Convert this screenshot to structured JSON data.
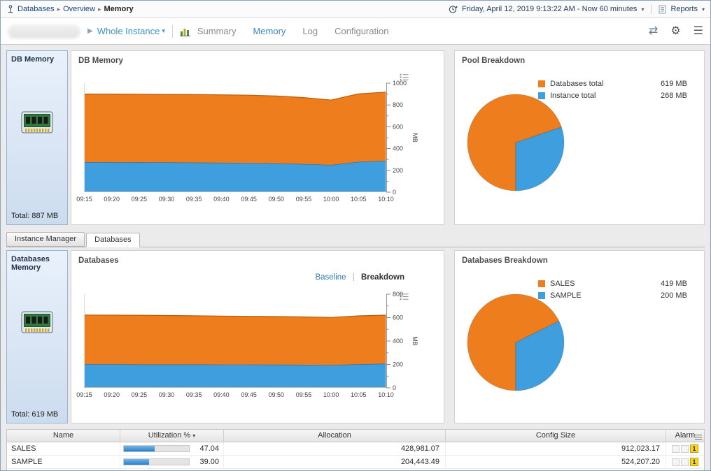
{
  "colors": {
    "orange": "#ee7d1d",
    "blue": "#3e9ede",
    "link_blue": "#2e7fb5",
    "alarm_yellow": "#fdd226"
  },
  "breadcrumb": {
    "items": [
      "Databases",
      "Overview",
      "Memory"
    ]
  },
  "header": {
    "time_range": "Friday, April 12, 2019 9:13:22 AM - Now 60 minutes",
    "reports_label": "Reports"
  },
  "toolbar": {
    "instance_selector": "Whole Instance",
    "nav": [
      "Summary",
      "Memory",
      "Log",
      "Configuration"
    ],
    "active_tab": "Memory"
  },
  "panels": {
    "db_memory_card": {
      "title": "DB Memory",
      "total": "Total: 887 MB"
    },
    "db_memory_chart": {
      "title": "DB Memory"
    },
    "pool_breakdown": {
      "title": "Pool Breakdown",
      "legend": [
        {
          "label": "Databases total",
          "value": "619 MB"
        },
        {
          "label": "Instance total",
          "value": "268 MB"
        }
      ]
    },
    "databases_card": {
      "title": "Databases Memory",
      "total": "Total: 619 MB"
    },
    "databases_chart": {
      "title": "Databases",
      "toggle": {
        "baseline": "Baseline",
        "breakdown": "Breakdown"
      }
    },
    "databases_breakdown": {
      "title": "Databases Breakdown",
      "legend": [
        {
          "label": "SALES",
          "value": "419 MB"
        },
        {
          "label": "SAMPLE",
          "value": "200 MB"
        }
      ]
    }
  },
  "subtabs": {
    "items": [
      "Instance Manager",
      "Databases"
    ],
    "active": "Databases"
  },
  "table": {
    "columns": [
      "Name",
      "Utilization %",
      "Allocation",
      "Config Size",
      "Alarm"
    ],
    "rows": [
      {
        "name": "SALES",
        "utilization": "47.04",
        "utilization_pct": 47.04,
        "allocation": "428,981.07",
        "config_size": "912,023.17",
        "alarm_warning": "1"
      },
      {
        "name": "SAMPLE",
        "utilization": "39.00",
        "utilization_pct": 39.0,
        "allocation": "204,443.49",
        "config_size": "524,207.20",
        "alarm_warning": "1"
      }
    ]
  },
  "chart_data": [
    {
      "type": "area",
      "title": "DB Memory",
      "ylabel": "MB",
      "ylim": [
        0,
        1000
      ],
      "ytick": 200,
      "categories": [
        "09:15",
        "09:20",
        "09:25",
        "09:30",
        "09:35",
        "09:40",
        "09:45",
        "09:50",
        "09:55",
        "10:00",
        "10:05",
        "10:10"
      ],
      "series": [
        {
          "name": "Instance total",
          "color": "#3e9ede",
          "edge": "#1a6fb0",
          "values": [
            275,
            274,
            274,
            273,
            272,
            270,
            268,
            264,
            258,
            250,
            278,
            288
          ]
        },
        {
          "name": "Databases total",
          "color": "#ee7d1d",
          "edge": "#b85e08",
          "values": [
            625,
            626,
            624,
            624,
            624,
            623,
            622,
            618,
            610,
            595,
            624,
            630
          ]
        }
      ]
    },
    {
      "type": "pie",
      "title": "Pool Breakdown",
      "slices": [
        {
          "label": "Databases total",
          "value": 619,
          "color": "#ee7d1d"
        },
        {
          "label": "Instance total",
          "value": 268,
          "color": "#3e9ede"
        }
      ]
    },
    {
      "type": "area",
      "title": "Databases",
      "ylabel": "MB",
      "ylim": [
        0,
        800
      ],
      "ytick": 200,
      "categories": [
        "09:15",
        "09:20",
        "09:25",
        "09:30",
        "09:35",
        "09:40",
        "09:45",
        "09:50",
        "09:55",
        "10:00",
        "10:05",
        "10:10"
      ],
      "series": [
        {
          "name": "SAMPLE",
          "color": "#3e9ede",
          "edge": "#1a6fb0",
          "values": [
            201,
            201,
            200,
            200,
            200,
            199,
            199,
            198,
            197,
            196,
            201,
            206
          ]
        },
        {
          "name": "SALES",
          "color": "#ee7d1d",
          "edge": "#b85e08",
          "values": [
            421,
            420,
            420,
            418,
            416,
            414,
            412,
            411,
            409,
            406,
            414,
            415
          ]
        }
      ]
    },
    {
      "type": "pie",
      "title": "Databases Breakdown",
      "slices": [
        {
          "label": "SALES",
          "value": 419,
          "color": "#ee7d1d"
        },
        {
          "label": "SAMPLE",
          "value": 200,
          "color": "#3e9ede"
        }
      ]
    }
  ]
}
